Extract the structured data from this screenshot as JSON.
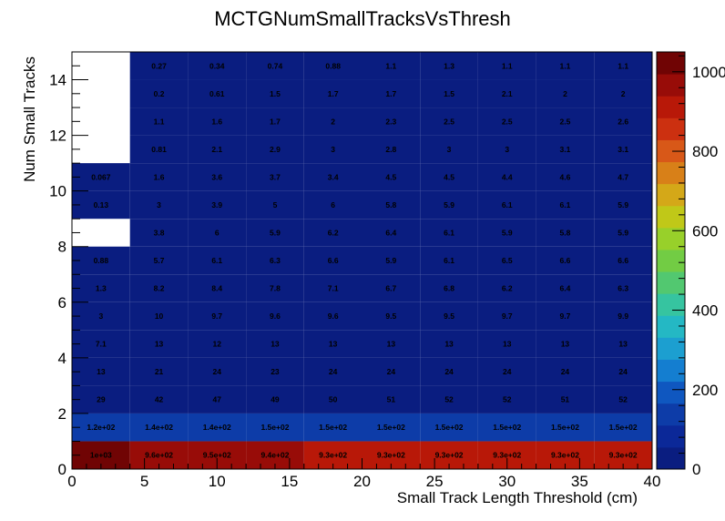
{
  "chart_data": {
    "type": "heatmap",
    "title": "MCTGNumSmallTracksVsThresh",
    "xlabel": "Small Track Length Threshold (cm)",
    "ylabel": "Num Small Tracks",
    "xlim": [
      0,
      40
    ],
    "ylim": [
      0,
      15
    ],
    "x_bin_edges": [
      0,
      4,
      8,
      12,
      16,
      20,
      24,
      28,
      32,
      36,
      40
    ],
    "y_bin_edges": [
      0,
      1,
      2,
      3,
      4,
      5,
      6,
      7,
      8,
      9,
      10,
      11,
      12,
      13,
      14,
      15
    ],
    "x_ticks": [
      0,
      5,
      10,
      15,
      20,
      25,
      30,
      35,
      40
    ],
    "y_ticks": [
      0,
      2,
      4,
      6,
      8,
      10,
      12,
      14
    ],
    "z_range": [
      0,
      1050
    ],
    "z_ticks": [
      0,
      200,
      400,
      600,
      800,
      1000
    ],
    "palette": [
      "#0a1d80",
      "#0b2898",
      "#0d3ca8",
      "#0f57c0",
      "#147ed0",
      "#1c9fd0",
      "#24b8c4",
      "#36c4a0",
      "#52c870",
      "#72cc44",
      "#98d02a",
      "#c0c818",
      "#d4a818",
      "#d88018",
      "#d85818",
      "#cc3010",
      "#b81808",
      "#980c08",
      "#700404"
    ],
    "grid": false,
    "cells": [
      [
        {
          "label": "1e+03",
          "value": 1000
        },
        {
          "label": "9.6e+02",
          "value": 960
        },
        {
          "label": "9.5e+02",
          "value": 950
        },
        {
          "label": "9.4e+02",
          "value": 940
        },
        {
          "label": "9.3e+02",
          "value": 930
        },
        {
          "label": "9.3e+02",
          "value": 930
        },
        {
          "label": "9.3e+02",
          "value": 930
        },
        {
          "label": "9.3e+02",
          "value": 930
        },
        {
          "label": "9.3e+02",
          "value": 930
        },
        {
          "label": "9.3e+02",
          "value": 930
        }
      ],
      [
        {
          "label": "1.2e+02",
          "value": 120
        },
        {
          "label": "1.4e+02",
          "value": 140
        },
        {
          "label": "1.4e+02",
          "value": 140
        },
        {
          "label": "1.5e+02",
          "value": 150
        },
        {
          "label": "1.5e+02",
          "value": 150
        },
        {
          "label": "1.5e+02",
          "value": 150
        },
        {
          "label": "1.5e+02",
          "value": 150
        },
        {
          "label": "1.5e+02",
          "value": 150
        },
        {
          "label": "1.5e+02",
          "value": 150
        },
        {
          "label": "1.5e+02",
          "value": 150
        }
      ],
      [
        {
          "label": "29",
          "value": 29
        },
        {
          "label": "42",
          "value": 42
        },
        {
          "label": "47",
          "value": 47
        },
        {
          "label": "49",
          "value": 49
        },
        {
          "label": "50",
          "value": 50
        },
        {
          "label": "51",
          "value": 51
        },
        {
          "label": "52",
          "value": 52
        },
        {
          "label": "52",
          "value": 52
        },
        {
          "label": "51",
          "value": 51
        },
        {
          "label": "52",
          "value": 52
        }
      ],
      [
        {
          "label": "13",
          "value": 13
        },
        {
          "label": "21",
          "value": 21
        },
        {
          "label": "24",
          "value": 24
        },
        {
          "label": "23",
          "value": 23
        },
        {
          "label": "24",
          "value": 24
        },
        {
          "label": "24",
          "value": 24
        },
        {
          "label": "24",
          "value": 24
        },
        {
          "label": "24",
          "value": 24
        },
        {
          "label": "24",
          "value": 24
        },
        {
          "label": "24",
          "value": 24
        }
      ],
      [
        {
          "label": "7.1",
          "value": 7.1
        },
        {
          "label": "13",
          "value": 13
        },
        {
          "label": "12",
          "value": 12
        },
        {
          "label": "13",
          "value": 13
        },
        {
          "label": "13",
          "value": 13
        },
        {
          "label": "13",
          "value": 13
        },
        {
          "label": "13",
          "value": 13
        },
        {
          "label": "13",
          "value": 13
        },
        {
          "label": "13",
          "value": 13
        },
        {
          "label": "13",
          "value": 13
        }
      ],
      [
        {
          "label": "3",
          "value": 3
        },
        {
          "label": "10",
          "value": 10
        },
        {
          "label": "9.7",
          "value": 9.7
        },
        {
          "label": "9.6",
          "value": 9.6
        },
        {
          "label": "9.6",
          "value": 9.6
        },
        {
          "label": "9.5",
          "value": 9.5
        },
        {
          "label": "9.5",
          "value": 9.5
        },
        {
          "label": "9.7",
          "value": 9.7
        },
        {
          "label": "9.7",
          "value": 9.7
        },
        {
          "label": "9.9",
          "value": 9.9
        }
      ],
      [
        {
          "label": "1.3",
          "value": 1.3
        },
        {
          "label": "8.2",
          "value": 8.2
        },
        {
          "label": "8.4",
          "value": 8.4
        },
        {
          "label": "7.8",
          "value": 7.8
        },
        {
          "label": "7.1",
          "value": 7.1
        },
        {
          "label": "6.7",
          "value": 6.7
        },
        {
          "label": "6.8",
          "value": 6.8
        },
        {
          "label": "6.2",
          "value": 6.2
        },
        {
          "label": "6.4",
          "value": 6.4
        },
        {
          "label": "6.3",
          "value": 6.3
        }
      ],
      [
        {
          "label": "0.88",
          "value": 0.88
        },
        {
          "label": "5.7",
          "value": 5.7
        },
        {
          "label": "6.1",
          "value": 6.1
        },
        {
          "label": "6.3",
          "value": 6.3
        },
        {
          "label": "6.6",
          "value": 6.6
        },
        {
          "label": "5.9",
          "value": 5.9
        },
        {
          "label": "6.1",
          "value": 6.1
        },
        {
          "label": "6.5",
          "value": 6.5
        },
        {
          "label": "6.6",
          "value": 6.6
        },
        {
          "label": "6.6",
          "value": 6.6
        }
      ],
      [
        {
          "label": "",
          "value": null
        },
        {
          "label": "3.8",
          "value": 3.8
        },
        {
          "label": "6",
          "value": 6
        },
        {
          "label": "5.9",
          "value": 5.9
        },
        {
          "label": "6.2",
          "value": 6.2
        },
        {
          "label": "6.4",
          "value": 6.4
        },
        {
          "label": "6.1",
          "value": 6.1
        },
        {
          "label": "5.9",
          "value": 5.9
        },
        {
          "label": "5.8",
          "value": 5.8
        },
        {
          "label": "5.9",
          "value": 5.9
        }
      ],
      [
        {
          "label": "0.13",
          "value": 0.13
        },
        {
          "label": "3",
          "value": 3
        },
        {
          "label": "3.9",
          "value": 3.9
        },
        {
          "label": "5",
          "value": 5
        },
        {
          "label": "6",
          "value": 6
        },
        {
          "label": "5.8",
          "value": 5.8
        },
        {
          "label": "5.9",
          "value": 5.9
        },
        {
          "label": "6.1",
          "value": 6.1
        },
        {
          "label": "6.1",
          "value": 6.1
        },
        {
          "label": "5.9",
          "value": 5.9
        }
      ],
      [
        {
          "label": "0.067",
          "value": 0.067
        },
        {
          "label": "1.6",
          "value": 1.6
        },
        {
          "label": "3.6",
          "value": 3.6
        },
        {
          "label": "3.7",
          "value": 3.7
        },
        {
          "label": "3.4",
          "value": 3.4
        },
        {
          "label": "4.5",
          "value": 4.5
        },
        {
          "label": "4.5",
          "value": 4.5
        },
        {
          "label": "4.4",
          "value": 4.4
        },
        {
          "label": "4.6",
          "value": 4.6
        },
        {
          "label": "4.7",
          "value": 4.7
        }
      ],
      [
        {
          "label": "",
          "value": null
        },
        {
          "label": "0.81",
          "value": 0.81
        },
        {
          "label": "2.1",
          "value": 2.1
        },
        {
          "label": "2.9",
          "value": 2.9
        },
        {
          "label": "3",
          "value": 3
        },
        {
          "label": "2.8",
          "value": 2.8
        },
        {
          "label": "3",
          "value": 3
        },
        {
          "label": "3",
          "value": 3
        },
        {
          "label": "3.1",
          "value": 3.1
        },
        {
          "label": "3.1",
          "value": 3.1
        }
      ],
      [
        {
          "label": "",
          "value": null
        },
        {
          "label": "1.1",
          "value": 1.1
        },
        {
          "label": "1.6",
          "value": 1.6
        },
        {
          "label": "1.7",
          "value": 1.7
        },
        {
          "label": "2",
          "value": 2
        },
        {
          "label": "2.3",
          "value": 2.3
        },
        {
          "label": "2.5",
          "value": 2.5
        },
        {
          "label": "2.5",
          "value": 2.5
        },
        {
          "label": "2.5",
          "value": 2.5
        },
        {
          "label": "2.6",
          "value": 2.6
        }
      ],
      [
        {
          "label": "",
          "value": null
        },
        {
          "label": "0.2",
          "value": 0.2
        },
        {
          "label": "0.61",
          "value": 0.61
        },
        {
          "label": "1.5",
          "value": 1.5
        },
        {
          "label": "1.7",
          "value": 1.7
        },
        {
          "label": "1.7",
          "value": 1.7
        },
        {
          "label": "1.5",
          "value": 1.5
        },
        {
          "label": "2.1",
          "value": 2.1
        },
        {
          "label": "2",
          "value": 2
        },
        {
          "label": "2",
          "value": 2
        }
      ],
      [
        {
          "label": "",
          "value": null
        },
        {
          "label": "0.27",
          "value": 0.27
        },
        {
          "label": "0.34",
          "value": 0.34
        },
        {
          "label": "0.74",
          "value": 0.74
        },
        {
          "label": "0.88",
          "value": 0.88
        },
        {
          "label": "1.1",
          "value": 1.1
        },
        {
          "label": "1.3",
          "value": 1.3
        },
        {
          "label": "1.1",
          "value": 1.1
        },
        {
          "label": "1.1",
          "value": 1.1
        },
        {
          "label": "1.1",
          "value": 1.1
        }
      ]
    ]
  }
}
